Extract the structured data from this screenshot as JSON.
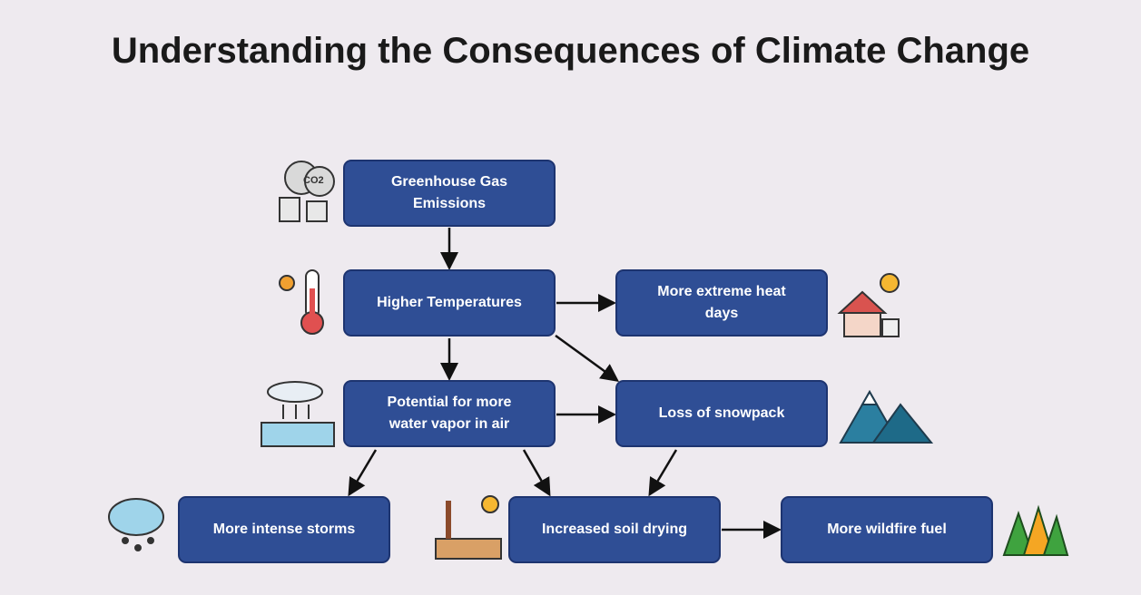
{
  "title": "Understanding the Consequences of Climate Change",
  "nodes": [
    {
      "label": "Greenhouse Gas Emissions"
    },
    {
      "label": "Higher Temperatures"
    },
    {
      "label": "More extreme heat days"
    },
    {
      "label": "Potential for more water vapor in air"
    },
    {
      "label": "Loss of snowpack"
    },
    {
      "label": "More intense storms"
    },
    {
      "label": "Increased soil drying"
    },
    {
      "label": "More wildfire fuel"
    }
  ]
}
